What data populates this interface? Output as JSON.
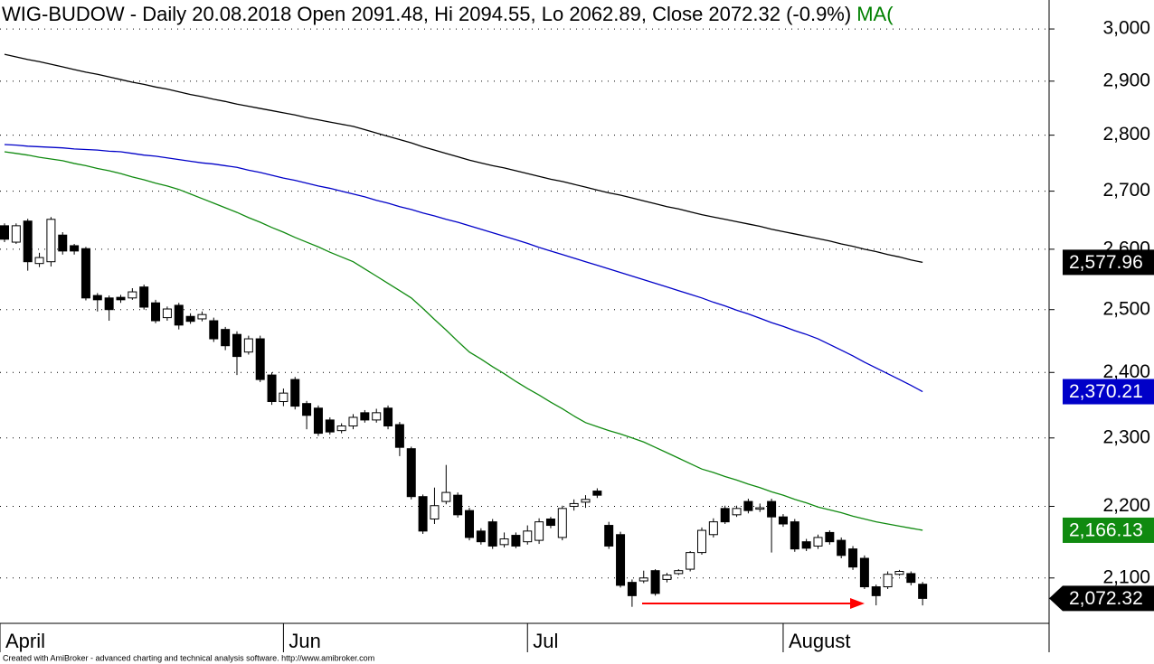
{
  "chart_data": {
    "type": "candlestick",
    "title": "WIG-BUDOW - Daily 20.08.2018 Open 2091.48, Hi 2094.55, Lo 2062.89, Close 2072.32 (-0.9%)",
    "title_suffix": "MA(",
    "title_suffix_color": "#008000",
    "footer": "Created with AmiBroker - advanced charting and technical analysis software. http://www.amibroker.com",
    "categories": [
      "April",
      null,
      null,
      null,
      null,
      null,
      null,
      null,
      null,
      null,
      null,
      null,
      null,
      null,
      null,
      null,
      null,
      null,
      null,
      null,
      null,
      null,
      null,
      null,
      "Jun",
      null,
      null,
      null,
      null,
      null,
      null,
      null,
      null,
      null,
      null,
      null,
      null,
      null,
      null,
      null,
      null,
      null,
      null,
      null,
      null,
      "Jul",
      null,
      null,
      null,
      null,
      null,
      null,
      null,
      null,
      null,
      null,
      null,
      null,
      null,
      null,
      null,
      null,
      null,
      null,
      null,
      null,
      null,
      "August",
      null,
      null,
      null,
      null,
      null,
      null,
      null,
      null,
      null,
      null,
      null,
      null
    ],
    "open": [
      2640,
      2612,
      2648,
      2576,
      2579,
      2624,
      2606,
      2601,
      2523,
      2519,
      2520,
      2519,
      2537,
      2511,
      2487,
      2507,
      2489,
      2485,
      2482,
      2468,
      2460,
      2432,
      2453,
      2396,
      2355,
      2389,
      2352,
      2345,
      2327,
      2311,
      2318,
      2338,
      2327,
      2345,
      2320,
      2284,
      2214,
      2182,
      2207,
      2216,
      2194,
      2165,
      2178,
      2146,
      2159,
      2150,
      2152,
      2182,
      2156,
      2200,
      2206,
      2222,
      2173,
      2160,
      2094,
      2096,
      2110,
      2098,
      2106,
      2112,
      2135,
      2160,
      2197,
      2188,
      2207,
      2196,
      2207,
      2185,
      2178,
      2150,
      2144,
      2163,
      2152,
      2140,
      2127,
      2088,
      2088,
      2105,
      2106,
      2091.48
    ],
    "high": [
      2644,
      2644,
      2652,
      2594,
      2655,
      2629,
      2609,
      2604,
      2527,
      2523,
      2524,
      2535,
      2541,
      2516,
      2505,
      2511,
      2494,
      2497,
      2487,
      2472,
      2465,
      2458,
      2458,
      2400,
      2375,
      2393,
      2356,
      2349,
      2331,
      2322,
      2336,
      2342,
      2344,
      2349,
      2324,
      2287,
      2217,
      2227,
      2260,
      2220,
      2198,
      2169,
      2182,
      2163,
      2163,
      2173,
      2183,
      2185,
      2201,
      2210,
      2216,
      2226,
      2178,
      2164,
      2098,
      2110,
      2112,
      2107,
      2112,
      2137,
      2170,
      2183,
      2201,
      2201,
      2211,
      2204,
      2211,
      2189,
      2182,
      2154,
      2160,
      2166,
      2156,
      2144,
      2131,
      2091,
      2109,
      2111,
      2109,
      2094.55
    ],
    "low": [
      2612,
      2609,
      2564,
      2570,
      2571,
      2591,
      2591,
      2515,
      2497,
      2482,
      2511,
      2516,
      2500,
      2478,
      2482,
      2468,
      2477,
      2481,
      2448,
      2435,
      2396,
      2428,
      2385,
      2350,
      2348,
      2343,
      2313,
      2303,
      2305,
      2307,
      2313,
      2323,
      2323,
      2313,
      2273,
      2210,
      2161,
      2175,
      2203,
      2184,
      2152,
      2146,
      2140,
      2142,
      2141,
      2146,
      2147,
      2169,
      2152,
      2194,
      2198,
      2212,
      2140,
      2087,
      2061,
      2093,
      2076,
      2094,
      2104,
      2109,
      2132,
      2156,
      2175,
      2185,
      2190,
      2192,
      2135,
      2171,
      2136,
      2137,
      2140,
      2146,
      2127,
      2111,
      2085,
      2063,
      2085,
      2103,
      2090,
      2062.89
    ],
    "close": [
      2617,
      2640,
      2579,
      2586,
      2651,
      2597,
      2597,
      2519,
      2516,
      2500,
      2516,
      2529,
      2504,
      2482,
      2501,
      2475,
      2481,
      2492,
      2453,
      2442,
      2425,
      2453,
      2389,
      2355,
      2368,
      2348,
      2334,
      2307,
      2309,
      2318,
      2331,
      2327,
      2338,
      2318,
      2286,
      2214,
      2165,
      2201,
      2220,
      2188,
      2156,
      2150,
      2144,
      2154,
      2144,
      2165,
      2178,
      2173,
      2197,
      2204,
      2210,
      2216,
      2144,
      2090,
      2076,
      2100,
      2079,
      2104,
      2110,
      2135,
      2166,
      2178,
      2178,
      2197,
      2194,
      2198,
      2185,
      2175,
      2140,
      2141,
      2156,
      2150,
      2131,
      2115,
      2088,
      2076,
      2105,
      2109,
      2094,
      2072.32
    ],
    "close_label": "2,072.32",
    "up_color": "#ffffff",
    "down_color": "#000000",
    "series": [
      {
        "color": "#000000",
        "last_label": "2,577.96",
        "values": [
          2951,
          2946,
          2941,
          2937,
          2932,
          2927,
          2922,
          2917,
          2913,
          2908,
          2903,
          2898,
          2894,
          2889,
          2885,
          2880,
          2875,
          2871,
          2866,
          2862,
          2857,
          2853,
          2849,
          2845,
          2841,
          2837,
          2832,
          2828,
          2824,
          2820,
          2816,
          2810,
          2804,
          2798,
          2792,
          2786,
          2779,
          2773,
          2767,
          2761,
          2755,
          2750,
          2745,
          2741,
          2736,
          2731,
          2726,
          2721,
          2717,
          2712,
          2707,
          2702,
          2697,
          2693,
          2688,
          2683,
          2678,
          2673,
          2669,
          2664,
          2659,
          2655,
          2651,
          2647,
          2643,
          2639,
          2634,
          2630,
          2626,
          2622,
          2618,
          2614,
          2609,
          2605,
          2600,
          2596,
          2591,
          2587,
          2582,
          2577.96
        ]
      },
      {
        "color": "#0000c8",
        "last_label": "2,370.21",
        "values": [
          2783,
          2782,
          2780,
          2779,
          2778,
          2777,
          2775,
          2774,
          2773,
          2771,
          2770,
          2767,
          2764,
          2762,
          2759,
          2756,
          2753,
          2750,
          2748,
          2745,
          2742,
          2737,
          2733,
          2728,
          2723,
          2719,
          2714,
          2709,
          2705,
          2700,
          2695,
          2690,
          2684,
          2679,
          2673,
          2668,
          2662,
          2657,
          2651,
          2646,
          2640,
          2634,
          2628,
          2622,
          2616,
          2610,
          2603,
          2597,
          2591,
          2585,
          2579,
          2573,
          2567,
          2561,
          2555,
          2549,
          2543,
          2537,
          2531,
          2525,
          2519,
          2512,
          2506,
          2499,
          2493,
          2486,
          2479,
          2473,
          2466,
          2460,
          2453,
          2444,
          2435,
          2426,
          2416,
          2407,
          2398,
          2389,
          2380,
          2370.21
        ]
      },
      {
        "color": "#108a10",
        "last_label": "2,166.13",
        "values": [
          2770,
          2767,
          2764,
          2760,
          2757,
          2754,
          2749,
          2745,
          2740,
          2736,
          2731,
          2725,
          2720,
          2714,
          2709,
          2703,
          2695,
          2687,
          2679,
          2671,
          2663,
          2654,
          2646,
          2637,
          2629,
          2620,
          2612,
          2604,
          2595,
          2587,
          2579,
          2567,
          2555,
          2543,
          2531,
          2519,
          2502,
          2484,
          2467,
          2449,
          2432,
          2421,
          2409,
          2398,
          2386,
          2375,
          2365,
          2354,
          2344,
          2333,
          2323,
          2317,
          2311,
          2306,
          2300,
          2294,
          2286,
          2278,
          2270,
          2262,
          2254,
          2249,
          2243,
          2238,
          2232,
          2227,
          2221,
          2216,
          2210,
          2205,
          2199,
          2195,
          2191,
          2186,
          2182,
          2178,
          2175,
          2172,
          2169,
          2166.13
        ]
      }
    ],
    "ylim": [
      2039,
      3057
    ],
    "log_scale": true,
    "grid": true,
    "yticks": [
      {
        "value": 2100,
        "label": "2,100"
      },
      {
        "value": 2200,
        "label": "2,200"
      },
      {
        "value": 2300,
        "label": "2,300"
      },
      {
        "value": 2400,
        "label": "2,400"
      },
      {
        "value": 2500,
        "label": "2,500"
      },
      {
        "value": 2600,
        "label": "2,600"
      },
      {
        "value": 2700,
        "label": "2,700"
      },
      {
        "value": 2800,
        "label": "2,800"
      },
      {
        "value": 2900,
        "label": "2,900"
      },
      {
        "value": 3000,
        "label": "3,000"
      }
    ]
  }
}
